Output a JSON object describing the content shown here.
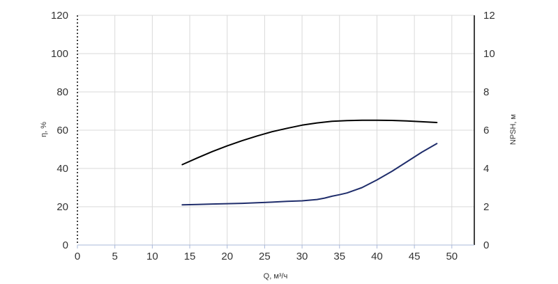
{
  "chart_data": {
    "type": "line",
    "xlabel": "Q, м³/ч",
    "ylabel": "η, %",
    "y2label": "NPSH, м",
    "xlim": [
      0,
      53
    ],
    "ylim": [
      0,
      120
    ],
    "y2lim": [
      0,
      12
    ],
    "x_ticks": [
      0,
      5,
      10,
      15,
      20,
      25,
      30,
      35,
      40,
      45,
      50
    ],
    "y_ticks": [
      0,
      20,
      40,
      60,
      80,
      100,
      120
    ],
    "y2_ticks": [
      0,
      2,
      4,
      6,
      8,
      10,
      12
    ],
    "grid": true,
    "series": [
      {
        "axis": "left",
        "color": "#000000",
        "x": [
          14,
          16,
          18,
          20,
          22,
          24,
          26,
          28,
          30,
          32,
          34,
          36,
          38,
          40,
          42,
          44,
          46,
          48
        ],
        "y": [
          42,
          45.5,
          48.8,
          51.8,
          54.5,
          57,
          59.2,
          61,
          62.6,
          63.8,
          64.6,
          65,
          65.2,
          65.2,
          65.1,
          64.8,
          64.4,
          64
        ]
      },
      {
        "axis": "right",
        "color": "#1f2d6b",
        "x": [
          14,
          16,
          18,
          20,
          22,
          24,
          26,
          28,
          30,
          32,
          33,
          34,
          35,
          36,
          38,
          40,
          42,
          44,
          46,
          48
        ],
        "y": [
          2.1,
          2.12,
          2.14,
          2.16,
          2.18,
          2.21,
          2.24,
          2.28,
          2.31,
          2.38,
          2.45,
          2.55,
          2.63,
          2.72,
          3.0,
          3.4,
          3.85,
          4.35,
          4.85,
          5.3
        ]
      }
    ]
  }
}
